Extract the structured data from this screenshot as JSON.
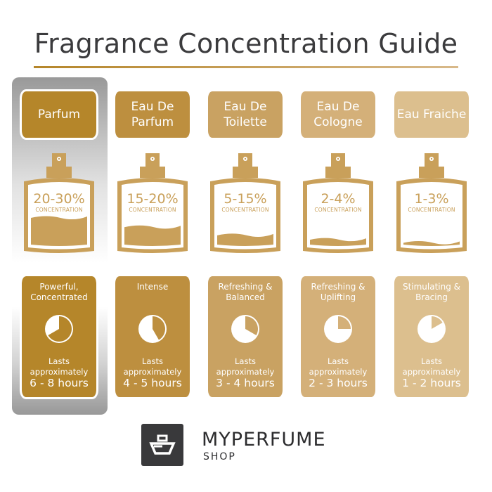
{
  "title": "Fragrance Concentration Guide",
  "colors": {
    "bottle": "#c9a05a",
    "title": "#3b3b3d",
    "highlight": "#a0a0a0"
  },
  "concentration_label": "CONCENTRATION",
  "lasts_label": "Lasts approximately",
  "types": [
    {
      "name": "Parfum",
      "concentration": "20-30%",
      "description": "Powerful, Concentrated",
      "duration": "6 - 8 hours",
      "max_hours": 8,
      "fill_level": 0.45,
      "color": "#b5862a",
      "highlighted": true
    },
    {
      "name": "Eau De Parfum",
      "concentration": "15-20%",
      "description": "Intense",
      "duration": "4 - 5 hours",
      "max_hours": 5,
      "fill_level": 0.3,
      "color": "#bd8f3f",
      "highlighted": false
    },
    {
      "name": "Eau De Toilette",
      "concentration": "5-15%",
      "description": "Refreshing & Balanced",
      "duration": "3 - 4 hours",
      "max_hours": 4,
      "fill_level": 0.17,
      "color": "#c9a262",
      "highlighted": false
    },
    {
      "name": "Eau De Cologne",
      "concentration": "2-4%",
      "description": "Refreshing & Uplifting",
      "duration": "2 - 3 hours",
      "max_hours": 3,
      "fill_level": 0.1,
      "color": "#d4b079",
      "highlighted": false
    },
    {
      "name": "Eau Fraiche",
      "concentration": "1-3%",
      "description": "Stimulating & Bracing",
      "duration": "1 - 2 hours",
      "max_hours": 2,
      "fill_level": 0.05,
      "color": "#dcbf8e",
      "highlighted": false
    }
  ],
  "logo": {
    "brand": "MYPERFUME",
    "sub": "SHOP"
  }
}
